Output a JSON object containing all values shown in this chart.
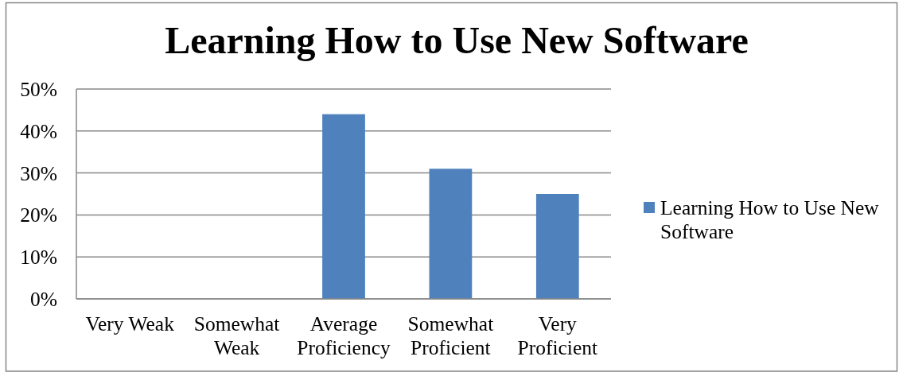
{
  "chart_data": {
    "type": "bar",
    "title": "Learning How to Use New Software",
    "categories": [
      "Very Weak",
      "Somewhat Weak",
      "Average Proficiency",
      "Somewhat Proficient",
      "Very Proficient"
    ],
    "series": [
      {
        "name": "Learning How to Use New Software",
        "color": "#4f81bd",
        "values": [
          0,
          0,
          44,
          31,
          25
        ]
      }
    ],
    "ylim": [
      0,
      50
    ],
    "yticks": [
      {
        "value": 0,
        "label": "0%"
      },
      {
        "value": 10,
        "label": "10%"
      },
      {
        "value": 20,
        "label": "20%"
      },
      {
        "value": 30,
        "label": "30%"
      },
      {
        "value": 40,
        "label": "40%"
      },
      {
        "value": 50,
        "label": "50%"
      }
    ],
    "grid": "y",
    "legend": "right"
  }
}
